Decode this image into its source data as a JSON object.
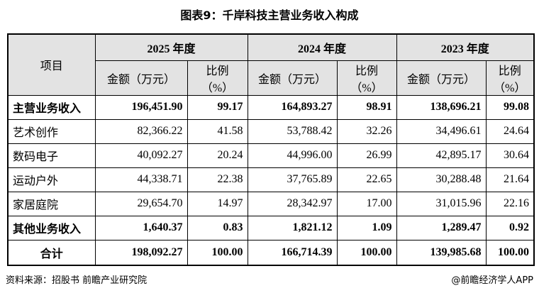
{
  "title": "图表9：千岸科技主营业务收入构成",
  "table": {
    "item_header": "项目",
    "years": [
      {
        "label": "2025 年度",
        "amount": "金额（万元）",
        "ratio": "比例\n（%）"
      },
      {
        "label": "2024 年度",
        "amount": "金额（万元）",
        "ratio": "比例\n（%）"
      },
      {
        "label": "2023 年度",
        "amount": "金额（万元）",
        "ratio": "比例\n（%）"
      }
    ],
    "rows": [
      {
        "label": "主营业务收入",
        "bold": true,
        "cells": [
          "196,451.90",
          "99.17",
          "164,893.27",
          "98.91",
          "138,696.21",
          "99.08"
        ]
      },
      {
        "label": "艺术创作",
        "bold": false,
        "cells": [
          "82,366.22",
          "41.58",
          "53,788.42",
          "32.26",
          "34,496.61",
          "24.64"
        ]
      },
      {
        "label": "数码电子",
        "bold": false,
        "cells": [
          "40,092.27",
          "20.24",
          "44,996.00",
          "26.99",
          "42,895.17",
          "30.64"
        ]
      },
      {
        "label": "运动户外",
        "bold": false,
        "cells": [
          "44,338.71",
          "22.38",
          "37,765.89",
          "22.65",
          "30,288.48",
          "21.64"
        ]
      },
      {
        "label": "家居庭院",
        "bold": false,
        "cells": [
          "29,654.70",
          "14.97",
          "28,342.97",
          "17.00",
          "31,015.96",
          "22.16"
        ]
      },
      {
        "label": "其他业务收入",
        "bold": true,
        "cells": [
          "1,640.37",
          "0.83",
          "1,821.12",
          "1.09",
          "1,289.47",
          "0.92"
        ]
      },
      {
        "label": "合计",
        "bold": true,
        "centered": true,
        "cells": [
          "198,092.27",
          "100.00",
          "166,714.39",
          "100.00",
          "139,985.68",
          "100.00"
        ]
      }
    ]
  },
  "source": "资料来源：招股书 前瞻产业研究院",
  "brand": "@前瞻经济学人APP"
}
